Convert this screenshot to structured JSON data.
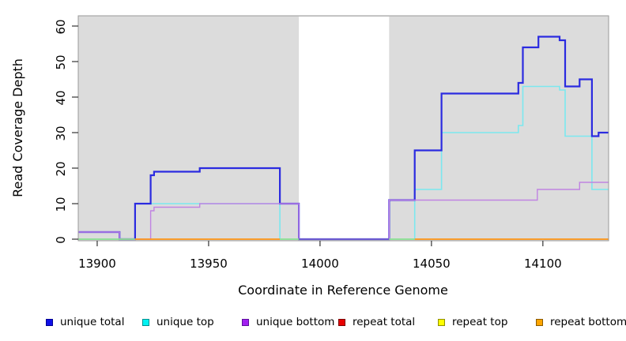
{
  "chart_data": {
    "type": "step-line",
    "title": "",
    "xlabel": "Coordinate in Reference Genome",
    "ylabel": "Read Coverage Depth",
    "xlim": [
      13891.5,
      14129.5
    ],
    "ylim": [
      0,
      63.3
    ],
    "x_ticks": [
      13900,
      13950,
      14000,
      14050,
      14100
    ],
    "y_ticks": [
      0,
      10,
      20,
      30,
      40,
      50,
      60
    ],
    "grid": false,
    "legend_position": "bottom",
    "panel_bg": "#DCDCDC",
    "panel_border": "#999999",
    "masked_region": {
      "x1": 13990.5,
      "x2": 14031,
      "fill": "#FFFFFF"
    },
    "series": [
      {
        "name": "unique top",
        "color": "#7BE8EF",
        "line_width": 1.6,
        "steps": [
          [
            13891.5,
            0
          ],
          [
            13917,
            10
          ],
          [
            13982,
            0
          ],
          [
            14042.5,
            14
          ],
          [
            14054.5,
            30
          ],
          [
            14089,
            32
          ],
          [
            14091,
            43
          ],
          [
            14107.5,
            42
          ],
          [
            14110,
            29
          ],
          [
            14122,
            14
          ]
        ],
        "x_end": 14129.5
      },
      {
        "name": "unique total",
        "color": "#2B2BE0",
        "line_width": 2.2,
        "steps": [
          [
            13891.5,
            2
          ],
          [
            13910,
            0
          ],
          [
            13917,
            10
          ],
          [
            13924,
            18
          ],
          [
            13925.5,
            19
          ],
          [
            13946,
            20
          ],
          [
            13982,
            10
          ],
          [
            13990.5,
            0
          ],
          [
            14031,
            11
          ],
          [
            14042.5,
            25
          ],
          [
            14054.5,
            41
          ],
          [
            14089,
            44
          ],
          [
            14091,
            54
          ],
          [
            14098,
            57
          ],
          [
            14107.5,
            56
          ],
          [
            14110,
            43
          ],
          [
            14116.5,
            45
          ],
          [
            14122,
            29
          ],
          [
            14125,
            30
          ]
        ],
        "x_end": 14129.5
      },
      {
        "name": "unique bottom",
        "color": "#C083E2",
        "line_width": 1.4,
        "steps": [
          [
            13891.5,
            2
          ],
          [
            13910,
            0
          ],
          [
            13924,
            8
          ],
          [
            13925.5,
            9
          ],
          [
            13946,
            10
          ],
          [
            13990.5,
            0
          ],
          [
            14031,
            11
          ],
          [
            14097.5,
            14
          ],
          [
            14116.5,
            16
          ]
        ],
        "x_end": 14129.5
      }
    ],
    "baseline_segments": [
      {
        "x1": 13891.5,
        "x2": 13917,
        "color": "#8FE08F"
      },
      {
        "x1": 13917,
        "x2": 13982,
        "color": "#FF9414"
      },
      {
        "x1": 13982,
        "x2": 13990.5,
        "color": "#8FE08F"
      },
      {
        "x1": 13990.5,
        "x2": 14031,
        "color": "#6A5ACD"
      },
      {
        "x1": 14031,
        "x2": 14042.5,
        "color": "#8FE08F"
      },
      {
        "x1": 14042.5,
        "x2": 14129.5,
        "color": "#FF9414"
      }
    ]
  },
  "legend": {
    "items": [
      {
        "label": "unique total",
        "fill": "#0F0FE8",
        "border": "#000090"
      },
      {
        "label": "unique top",
        "fill": "#00F2F2",
        "border": "#009090"
      },
      {
        "label": "unique bottom",
        "fill": "#A21FF0",
        "border": "#5D0F9E"
      },
      {
        "label": "repeat total",
        "fill": "#E80000",
        "border": "#7A0000"
      },
      {
        "label": "repeat top",
        "fill": "#FFFF00",
        "border": "#909000"
      },
      {
        "label": "repeat bottom",
        "fill": "#FFA500",
        "border": "#8A5A00"
      }
    ]
  }
}
